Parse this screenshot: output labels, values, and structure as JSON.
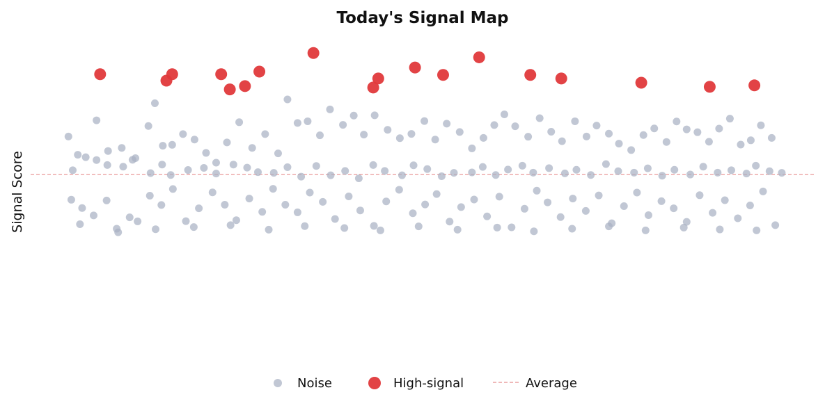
{
  "chart_data": {
    "type": "scatter",
    "title": "Today's Signal Map",
    "xlabel": "",
    "ylabel": "Signal Score",
    "xlim": [
      0,
      1
    ],
    "ylim": [
      0,
      1
    ],
    "grid": false,
    "legend_position": "bottom-center",
    "colors": {
      "noise": "#a9b1c3",
      "high_signal": "#e0393b",
      "average": "#eaa0a0"
    },
    "average": 0.495,
    "legend": {
      "noise": "Noise",
      "high_signal": "High-signal",
      "average": "Average"
    },
    "series": [
      {
        "name": "High-signal",
        "points": [
          [
            0.052,
            0.916
          ],
          [
            0.144,
            0.889
          ],
          [
            0.152,
            0.916
          ],
          [
            0.22,
            0.916
          ],
          [
            0.232,
            0.852
          ],
          [
            0.253,
            0.866
          ],
          [
            0.273,
            0.927
          ],
          [
            0.348,
            1.005
          ],
          [
            0.431,
            0.86
          ],
          [
            0.438,
            0.898
          ],
          [
            0.489,
            0.944
          ],
          [
            0.528,
            0.913
          ],
          [
            0.578,
            0.987
          ],
          [
            0.649,
            0.913
          ],
          [
            0.692,
            0.898
          ],
          [
            0.803,
            0.88
          ],
          [
            0.898,
            0.863
          ],
          [
            0.96,
            0.869
          ]
        ]
      },
      {
        "name": "Noise",
        "points": [
          [
            0.008,
            0.654
          ],
          [
            0.021,
            0.577
          ],
          [
            0.032,
            0.567
          ],
          [
            0.047,
            0.722
          ],
          [
            0.063,
            0.593
          ],
          [
            0.082,
            0.606
          ],
          [
            0.101,
            0.563
          ],
          [
            0.119,
            0.698
          ],
          [
            0.128,
            0.794
          ],
          [
            0.139,
            0.615
          ],
          [
            0.152,
            0.619
          ],
          [
            0.167,
            0.664
          ],
          [
            0.183,
            0.641
          ],
          [
            0.199,
            0.585
          ],
          [
            0.213,
            0.544
          ],
          [
            0.228,
            0.629
          ],
          [
            0.245,
            0.714
          ],
          [
            0.263,
            0.606
          ],
          [
            0.281,
            0.664
          ],
          [
            0.299,
            0.583
          ],
          [
            0.312,
            0.81
          ],
          [
            0.326,
            0.711
          ],
          [
            0.34,
            0.718
          ],
          [
            0.357,
            0.659
          ],
          [
            0.371,
            0.768
          ],
          [
            0.389,
            0.703
          ],
          [
            0.404,
            0.742
          ],
          [
            0.418,
            0.662
          ],
          [
            0.433,
            0.743
          ],
          [
            0.451,
            0.682
          ],
          [
            0.468,
            0.647
          ],
          [
            0.484,
            0.665
          ],
          [
            0.502,
            0.719
          ],
          [
            0.517,
            0.641
          ],
          [
            0.533,
            0.708
          ],
          [
            0.551,
            0.673
          ],
          [
            0.568,
            0.604
          ],
          [
            0.584,
            0.648
          ],
          [
            0.599,
            0.702
          ],
          [
            0.613,
            0.747
          ],
          [
            0.628,
            0.697
          ],
          [
            0.646,
            0.653
          ],
          [
            0.662,
            0.731
          ],
          [
            0.678,
            0.674
          ],
          [
            0.693,
            0.634
          ],
          [
            0.711,
            0.718
          ],
          [
            0.727,
            0.654
          ],
          [
            0.741,
            0.7
          ],
          [
            0.758,
            0.666
          ],
          [
            0.772,
            0.624
          ],
          [
            0.789,
            0.597
          ],
          [
            0.806,
            0.66
          ],
          [
            0.821,
            0.688
          ],
          [
            0.838,
            0.631
          ],
          [
            0.852,
            0.717
          ],
          [
            0.866,
            0.684
          ],
          [
            0.881,
            0.672
          ],
          [
            0.897,
            0.632
          ],
          [
            0.911,
            0.687
          ],
          [
            0.926,
            0.729
          ],
          [
            0.941,
            0.62
          ],
          [
            0.955,
            0.638
          ],
          [
            0.969,
            0.701
          ],
          [
            0.984,
            0.648
          ],
          [
            0.014,
            0.512
          ],
          [
            0.047,
            0.555
          ],
          [
            0.062,
            0.534
          ],
          [
            0.084,
            0.527
          ],
          [
            0.097,
            0.556
          ],
          [
            0.122,
            0.5
          ],
          [
            0.138,
            0.536
          ],
          [
            0.15,
            0.492
          ],
          [
            0.174,
            0.513
          ],
          [
            0.196,
            0.522
          ],
          [
            0.213,
            0.498
          ],
          [
            0.237,
            0.536
          ],
          [
            0.256,
            0.523
          ],
          [
            0.271,
            0.504
          ],
          [
            0.293,
            0.501
          ],
          [
            0.312,
            0.525
          ],
          [
            0.331,
            0.485
          ],
          [
            0.352,
            0.53
          ],
          [
            0.372,
            0.491
          ],
          [
            0.392,
            0.509
          ],
          [
            0.411,
            0.478
          ],
          [
            0.431,
            0.534
          ],
          [
            0.447,
            0.509
          ],
          [
            0.471,
            0.491
          ],
          [
            0.487,
            0.533
          ],
          [
            0.506,
            0.517
          ],
          [
            0.526,
            0.487
          ],
          [
            0.543,
            0.501
          ],
          [
            0.568,
            0.503
          ],
          [
            0.583,
            0.526
          ],
          [
            0.601,
            0.492
          ],
          [
            0.618,
            0.515
          ],
          [
            0.638,
            0.531
          ],
          [
            0.653,
            0.502
          ],
          [
            0.675,
            0.521
          ],
          [
            0.697,
            0.499
          ],
          [
            0.713,
            0.514
          ],
          [
            0.733,
            0.492
          ],
          [
            0.754,
            0.538
          ],
          [
            0.771,
            0.508
          ],
          [
            0.793,
            0.502
          ],
          [
            0.812,
            0.52
          ],
          [
            0.832,
            0.489
          ],
          [
            0.849,
            0.514
          ],
          [
            0.871,
            0.494
          ],
          [
            0.889,
            0.527
          ],
          [
            0.909,
            0.502
          ],
          [
            0.928,
            0.512
          ],
          [
            0.949,
            0.498
          ],
          [
            0.962,
            0.531
          ],
          [
            0.981,
            0.508
          ],
          [
            0.998,
            0.501
          ],
          [
            0.012,
            0.388
          ],
          [
            0.027,
            0.353
          ],
          [
            0.043,
            0.322
          ],
          [
            0.061,
            0.385
          ],
          [
            0.077,
            0.251
          ],
          [
            0.093,
            0.314
          ],
          [
            0.104,
            0.297
          ],
          [
            0.121,
            0.405
          ],
          [
            0.137,
            0.366
          ],
          [
            0.153,
            0.433
          ],
          [
            0.171,
            0.298
          ],
          [
            0.189,
            0.352
          ],
          [
            0.208,
            0.419
          ],
          [
            0.225,
            0.367
          ],
          [
            0.241,
            0.302
          ],
          [
            0.259,
            0.393
          ],
          [
            0.277,
            0.337
          ],
          [
            0.292,
            0.434
          ],
          [
            0.309,
            0.367
          ],
          [
            0.326,
            0.335
          ],
          [
            0.343,
            0.418
          ],
          [
            0.361,
            0.379
          ],
          [
            0.378,
            0.307
          ],
          [
            0.397,
            0.402
          ],
          [
            0.413,
            0.343
          ],
          [
            0.432,
            0.278
          ],
          [
            0.449,
            0.381
          ],
          [
            0.467,
            0.43
          ],
          [
            0.486,
            0.331
          ],
          [
            0.503,
            0.368
          ],
          [
            0.519,
            0.412
          ],
          [
            0.537,
            0.296
          ],
          [
            0.553,
            0.357
          ],
          [
            0.571,
            0.389
          ],
          [
            0.589,
            0.318
          ],
          [
            0.606,
            0.401
          ],
          [
            0.623,
            0.272
          ],
          [
            0.641,
            0.35
          ],
          [
            0.658,
            0.426
          ],
          [
            0.673,
            0.377
          ],
          [
            0.691,
            0.315
          ],
          [
            0.708,
            0.393
          ],
          [
            0.726,
            0.341
          ],
          [
            0.744,
            0.406
          ],
          [
            0.762,
            0.289
          ],
          [
            0.779,
            0.361
          ],
          [
            0.797,
            0.418
          ],
          [
            0.813,
            0.323
          ],
          [
            0.831,
            0.382
          ],
          [
            0.848,
            0.352
          ],
          [
            0.866,
            0.295
          ],
          [
            0.884,
            0.407
          ],
          [
            0.902,
            0.333
          ],
          [
            0.919,
            0.386
          ],
          [
            0.937,
            0.31
          ],
          [
            0.954,
            0.364
          ],
          [
            0.972,
            0.423
          ],
          [
            0.989,
            0.281
          ],
          [
            0.024,
            0.285
          ],
          [
            0.075,
            0.266
          ],
          [
            0.129,
            0.264
          ],
          [
            0.182,
            0.273
          ],
          [
            0.233,
            0.281
          ],
          [
            0.286,
            0.262
          ],
          [
            0.336,
            0.277
          ],
          [
            0.391,
            0.269
          ],
          [
            0.441,
            0.259
          ],
          [
            0.494,
            0.276
          ],
          [
            0.548,
            0.262
          ],
          [
            0.603,
            0.271
          ],
          [
            0.654,
            0.255
          ],
          [
            0.707,
            0.266
          ],
          [
            0.758,
            0.276
          ],
          [
            0.809,
            0.259
          ],
          [
            0.862,
            0.271
          ],
          [
            0.912,
            0.263
          ],
          [
            0.963,
            0.259
          ]
        ]
      }
    ]
  }
}
